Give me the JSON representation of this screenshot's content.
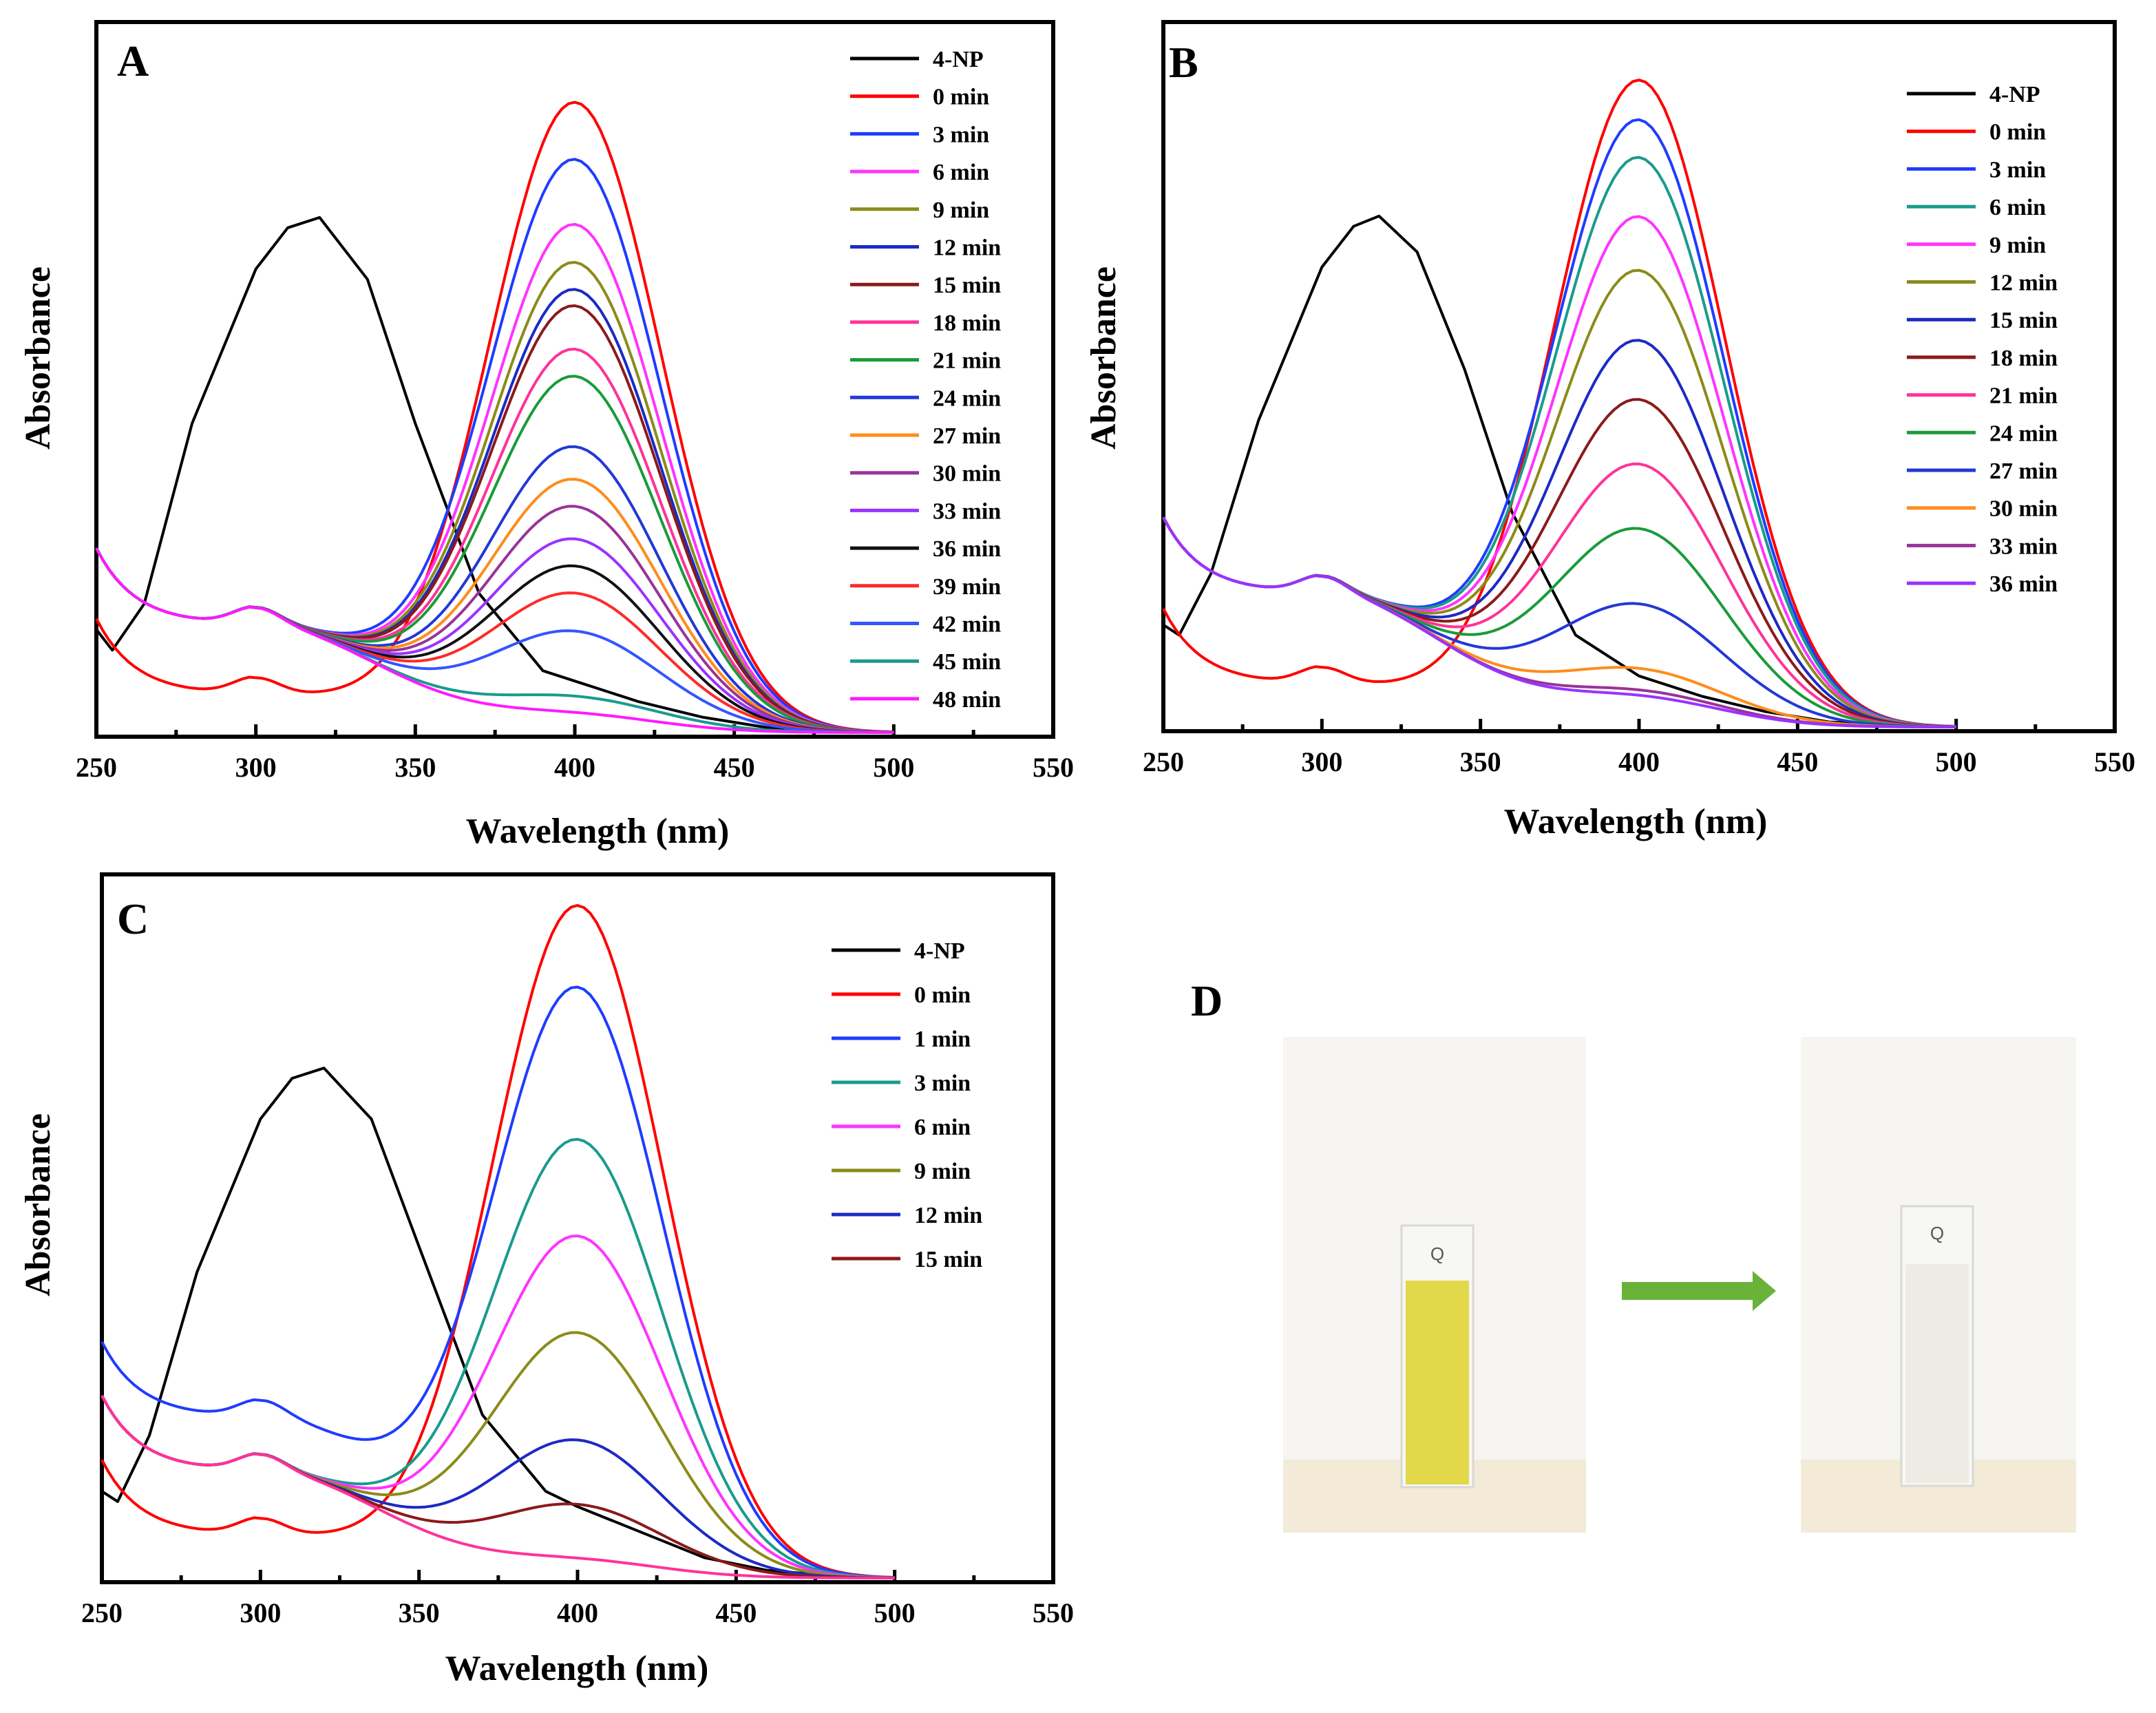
{
  "chart_data": [
    {
      "panel": "A",
      "type": "line",
      "xlabel": "Wavelength (nm)",
      "ylabel": "Absorbance",
      "xlim": [
        250,
        550
      ],
      "ylim": [
        0,
        1.0
      ],
      "xticks": [
        250,
        300,
        350,
        400,
        450,
        500,
        550
      ],
      "series": [
        {
          "name": "4-NP",
          "color": "#000000",
          "x": [
            250,
            255,
            265,
            280,
            300,
            310,
            320,
            335,
            350,
            370,
            390,
            400,
            420,
            440,
            460,
            480,
            500
          ],
          "y": [
            0.2,
            0.16,
            0.25,
            0.6,
            0.9,
            0.98,
            1.0,
            0.88,
            0.6,
            0.27,
            0.12,
            0.1,
            0.06,
            0.03,
            0.01,
            0.005,
            0
          ]
        },
        {
          "name": "0 min",
          "color": "#ff0000",
          "peak": 1.16,
          "base": 0.07
        },
        {
          "name": "3 min",
          "color": "#1f3cff",
          "peak": 1.05,
          "base": 0.2
        },
        {
          "name": "6 min",
          "color": "#ff33ff",
          "peak": 0.93,
          "base": 0.2
        },
        {
          "name": "9 min",
          "color": "#8b8b1a",
          "peak": 0.86,
          "base": 0.2
        },
        {
          "name": "12 min",
          "color": "#1c2ac4",
          "peak": 0.81,
          "base": 0.2
        },
        {
          "name": "15 min",
          "color": "#8b1a1a",
          "peak": 0.78,
          "base": 0.2
        },
        {
          "name": "18 min",
          "color": "#ff3399",
          "peak": 0.7,
          "base": 0.2
        },
        {
          "name": "21 min",
          "color": "#1a9b3a",
          "peak": 0.65,
          "base": 0.2
        },
        {
          "name": "24 min",
          "color": "#2338d8",
          "peak": 0.52,
          "base": 0.2
        },
        {
          "name": "27 min",
          "color": "#ff8c1a",
          "peak": 0.46,
          "base": 0.2
        },
        {
          "name": "30 min",
          "color": "#993399",
          "peak": 0.41,
          "base": 0.2
        },
        {
          "name": "33 min",
          "color": "#9933ff",
          "peak": 0.35,
          "base": 0.2
        },
        {
          "name": "36 min",
          "color": "#111111",
          "peak": 0.3,
          "base": 0.2
        },
        {
          "name": "39 min",
          "color": "#ff2a2a",
          "peak": 0.25,
          "base": 0.2
        },
        {
          "name": "42 min",
          "color": "#3355ff",
          "peak": 0.18,
          "base": 0.2
        },
        {
          "name": "45 min",
          "color": "#1a9b8c",
          "peak": 0.06,
          "base": 0.2
        },
        {
          "name": "48 min",
          "color": "#ff1aff",
          "peak": 0.03,
          "base": 0.2
        }
      ]
    },
    {
      "panel": "B",
      "type": "line",
      "xlabel": "Wavelength (nm)",
      "ylabel": "Absorbance",
      "xlim": [
        250,
        550
      ],
      "ylim": [
        0,
        1.0
      ],
      "xticks": [
        250,
        300,
        350,
        400,
        450,
        500,
        550
      ],
      "series": [
        {
          "name": "4-NP",
          "color": "#000000",
          "x": [
            250,
            255,
            265,
            280,
            300,
            310,
            318,
            330,
            345,
            360,
            380,
            400,
            420,
            440,
            460,
            480,
            500
          ],
          "y": [
            0.2,
            0.18,
            0.3,
            0.6,
            0.9,
            0.98,
            1.0,
            0.93,
            0.7,
            0.42,
            0.18,
            0.1,
            0.06,
            0.03,
            0.01,
            0.005,
            0
          ]
        },
        {
          "name": "0 min",
          "color": "#ff0000",
          "peak": 1.2,
          "base": 0.08
        },
        {
          "name": "3 min",
          "color": "#1f3cff",
          "peak": 1.12,
          "base": 0.25
        },
        {
          "name": "6 min",
          "color": "#1a9b8c",
          "peak": 1.05,
          "base": 0.25
        },
        {
          "name": "9 min",
          "color": "#ff33ff",
          "peak": 0.94,
          "base": 0.25
        },
        {
          "name": "12 min",
          "color": "#8b8b1a",
          "peak": 0.84,
          "base": 0.25
        },
        {
          "name": "15 min",
          "color": "#1c2ac4",
          "peak": 0.71,
          "base": 0.25
        },
        {
          "name": "18 min",
          "color": "#8b1a1a",
          "peak": 0.6,
          "base": 0.25
        },
        {
          "name": "21 min",
          "color": "#ff3399",
          "peak": 0.48,
          "base": 0.25
        },
        {
          "name": "24 min",
          "color": "#1a9b3a",
          "peak": 0.36,
          "base": 0.25
        },
        {
          "name": "27 min",
          "color": "#2338d8",
          "peak": 0.22,
          "base": 0.25
        },
        {
          "name": "30 min",
          "color": "#ff8c1a",
          "peak": 0.1,
          "base": 0.25
        },
        {
          "name": "33 min",
          "color": "#993399",
          "peak": 0.06,
          "base": 0.25
        },
        {
          "name": "36 min",
          "color": "#9933ff",
          "peak": 0.05,
          "base": 0.25
        }
      ]
    },
    {
      "panel": "C",
      "type": "line",
      "xlabel": "Wavelength (nm)",
      "ylabel": "Absorbance",
      "xlim": [
        250,
        550
      ],
      "ylim": [
        0,
        1.0
      ],
      "xticks": [
        250,
        300,
        350,
        400,
        450,
        500,
        550
      ],
      "series": [
        {
          "name": "4-NP",
          "color": "#000000",
          "x": [
            250,
            255,
            265,
            280,
            300,
            310,
            320,
            335,
            350,
            370,
            390,
            400,
            420,
            440,
            460,
            480,
            500
          ],
          "y": [
            0.17,
            0.15,
            0.28,
            0.6,
            0.9,
            0.98,
            1.0,
            0.9,
            0.65,
            0.32,
            0.17,
            0.14,
            0.09,
            0.04,
            0.015,
            0.005,
            0
          ]
        },
        {
          "name": "0 min",
          "color": "#ff0000",
          "peak": 1.25,
          "base": 0.08
        },
        {
          "name": "1 min",
          "color": "#1f3cff",
          "peak": 1.09,
          "base": 0.3
        },
        {
          "name": "3 min",
          "color": "#1a9b8c",
          "peak": 0.81,
          "base": 0.2
        },
        {
          "name": "6 min",
          "color": "#ff33ff",
          "peak": 0.63,
          "base": 0.2
        },
        {
          "name": "9 min",
          "color": "#8b8b1a",
          "peak": 0.45,
          "base": 0.2
        },
        {
          "name": "12 min",
          "color": "#1c2ac4",
          "peak": 0.25,
          "base": 0.2
        },
        {
          "name": "15 min",
          "color": "#8b1a1a",
          "peak": 0.13,
          "base": 0.2
        },
        {
          "name": "",
          "color": "#ff3399",
          "peak": 0.03,
          "base": 0.2
        }
      ],
      "legend": [
        "4-NP",
        "0 min",
        "1 min",
        "3 min",
        "6 min",
        "9 min",
        "12 min",
        "15 min"
      ]
    }
  ],
  "panel_d": {
    "label": "D",
    "cuvette_label": "Q",
    "before_color": "#e3d84a",
    "after_color": "#ecece4",
    "arrow_color": "#6ab23a"
  }
}
